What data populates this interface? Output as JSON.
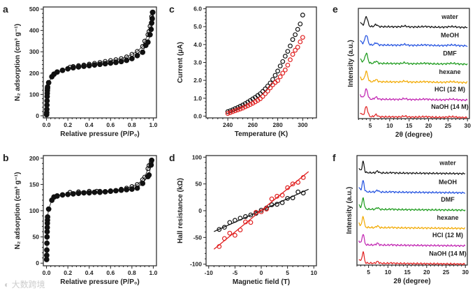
{
  "watermark": "大数跨境",
  "chart_data": [
    {
      "panel": "a",
      "type": "scatter",
      "xlabel": "Relative pressure (P/P₀)",
      "ylabel": "N₂ adsorption (cm³ g⁻¹)",
      "xlim": [
        -0.03,
        1.03
      ],
      "ylim": [
        -10,
        510
      ],
      "xticks": [
        0.0,
        0.2,
        0.4,
        0.6,
        0.8,
        1.0
      ],
      "xtick_labels": [
        "0.0",
        "0.2",
        "0.4",
        "0.6",
        "0.8",
        "1.0"
      ],
      "yticks": [
        0,
        100,
        200,
        300,
        400,
        500
      ],
      "ytick_labels": [
        "0",
        "100",
        "200",
        "300",
        "400",
        "500"
      ],
      "series": [
        {
          "name": "adsorption",
          "marker": "filled",
          "color": "#111111",
          "x": [
            0.001,
            0.002,
            0.003,
            0.004,
            0.005,
            0.006,
            0.007,
            0.008,
            0.009,
            0.01,
            0.02,
            0.05,
            0.07,
            0.1,
            0.15,
            0.2,
            0.25,
            0.3,
            0.35,
            0.4,
            0.45,
            0.5,
            0.55,
            0.6,
            0.65,
            0.7,
            0.75,
            0.8,
            0.85,
            0.9,
            0.93,
            0.95,
            0.97,
            0.98,
            0.985,
            0.99,
            0.995
          ],
          "y": [
            5,
            15,
            30,
            50,
            70,
            90,
            105,
            118,
            128,
            135,
            155,
            183,
            195,
            205,
            213,
            220,
            225,
            229,
            232,
            235,
            238,
            241,
            244,
            247,
            250,
            254,
            260,
            268,
            282,
            298,
            330,
            345,
            380,
            405,
            435,
            455,
            485
          ]
        },
        {
          "name": "desorption",
          "marker": "open",
          "color": "#111111",
          "x": [
            0.22,
            0.25,
            0.3,
            0.35,
            0.4,
            0.45,
            0.5,
            0.55,
            0.6,
            0.65,
            0.7,
            0.75,
            0.8,
            0.85,
            0.9,
            0.92,
            0.95,
            0.96,
            0.97,
            0.985,
            0.99
          ],
          "y": [
            228,
            231,
            235,
            238,
            242,
            246,
            250,
            255,
            259,
            263,
            268,
            276,
            288,
            302,
            325,
            350,
            380,
            395,
            420,
            465,
            485
          ]
        }
      ]
    },
    {
      "panel": "b",
      "type": "scatter",
      "xlabel": "Relative pressure (P/P₀)",
      "ylabel": "N₂ adsorption (cm³ g⁻¹)",
      "xlim": [
        -0.03,
        1.03
      ],
      "ylim": [
        -5,
        205
      ],
      "xticks": [
        0.0,
        0.2,
        0.4,
        0.6,
        0.8,
        1.0
      ],
      "xtick_labels": [
        "0.0",
        "0.2",
        "0.4",
        "0.6",
        "0.8",
        "1.0"
      ],
      "yticks": [
        0,
        50,
        100,
        150,
        200
      ],
      "ytick_labels": [
        "0",
        "50",
        "100",
        "150",
        "200"
      ],
      "series": [
        {
          "name": "adsorption",
          "marker": "filled",
          "color": "#111111",
          "x": [
            0.001,
            0.002,
            0.003,
            0.004,
            0.005,
            0.006,
            0.007,
            0.008,
            0.009,
            0.01,
            0.02,
            0.05,
            0.07,
            0.1,
            0.15,
            0.2,
            0.25,
            0.3,
            0.35,
            0.4,
            0.45,
            0.5,
            0.55,
            0.6,
            0.65,
            0.7,
            0.75,
            0.8,
            0.85,
            0.9,
            0.95,
            0.96,
            0.98,
            0.985
          ],
          "y": [
            7,
            15,
            25,
            38,
            50,
            60,
            68,
            76,
            82,
            88,
            103,
            120,
            126,
            128,
            130,
            131,
            132,
            133,
            134,
            134,
            135,
            135,
            136,
            137,
            138,
            139,
            140,
            141,
            143,
            152,
            165,
            168,
            187,
            196
          ]
        },
        {
          "name": "desorption",
          "marker": "open",
          "color": "#111111",
          "x": [
            0.22,
            0.3,
            0.4,
            0.47,
            0.5,
            0.6,
            0.7,
            0.75,
            0.8,
            0.85,
            0.9,
            0.92,
            0.95,
            0.96,
            0.98
          ],
          "y": [
            135,
            136,
            137,
            137,
            137,
            138,
            141,
            143,
            146,
            150,
            159,
            164,
            180,
            186,
            192
          ]
        }
      ]
    },
    {
      "panel": "c",
      "type": "scatter",
      "xlabel": "Temperature (K)",
      "ylabel": "Current (μA)",
      "xlim": [
        222.6,
        311
      ],
      "ylim": [
        -0.1,
        6.1
      ],
      "xticks": [
        240,
        260,
        280,
        300
      ],
      "xtick_labels": [
        "240",
        "260",
        "280",
        "300"
      ],
      "yticks": [
        0,
        1,
        2,
        3,
        4,
        5,
        6
      ],
      "ytick_labels": [
        "0.0",
        "1.0",
        "2.0",
        "3.0",
        "4.0",
        "5.0",
        "6.0"
      ],
      "series": [
        {
          "name": "black",
          "marker": "open",
          "color": "#111111",
          "x": [
            240,
            242,
            244,
            246,
            248,
            250,
            252,
            254,
            256,
            258,
            260,
            262,
            264,
            266,
            268,
            270,
            272,
            274,
            276,
            278,
            280,
            282,
            284,
            286,
            288,
            290,
            292,
            294,
            296,
            298,
            300
          ],
          "y": [
            0.25,
            0.3,
            0.35,
            0.42,
            0.48,
            0.55,
            0.62,
            0.7,
            0.78,
            0.87,
            0.96,
            1.05,
            1.15,
            1.25,
            1.38,
            1.52,
            1.68,
            1.85,
            2.05,
            2.28,
            2.52,
            2.8,
            3.05,
            3.35,
            3.62,
            3.92,
            4.28,
            4.55,
            4.85,
            5.15,
            5.65
          ]
        },
        {
          "name": "red",
          "marker": "open",
          "color": "#e02020",
          "x": [
            240,
            242,
            244,
            246,
            248,
            250,
            252,
            254,
            256,
            258,
            260,
            262,
            264,
            266,
            268,
            270,
            272,
            274,
            276,
            278,
            280,
            282,
            284,
            286,
            288,
            290,
            292,
            294,
            296,
            298,
            300
          ],
          "y": [
            0.15,
            0.2,
            0.25,
            0.3,
            0.35,
            0.4,
            0.45,
            0.52,
            0.58,
            0.65,
            0.72,
            0.8,
            0.88,
            0.97,
            1.1,
            1.25,
            1.4,
            1.58,
            1.75,
            1.88,
            1.98,
            2.2,
            2.4,
            2.58,
            2.85,
            3.15,
            3.45,
            3.68,
            3.85,
            4.15,
            4.4
          ]
        }
      ]
    },
    {
      "panel": "d",
      "type": "scatter",
      "xlabel": "Magnetic field (T)",
      "ylabel": "Hall resistance (kΩ)",
      "xlim": [
        -10.5,
        10.5
      ],
      "ylim": [
        -103,
        103
      ],
      "xticks": [
        -10,
        -5,
        0,
        5,
        10
      ],
      "xtick_labels": [
        "-10",
        "-5",
        "0",
        "5",
        "10"
      ],
      "yticks": [
        -100,
        -50,
        0,
        50,
        100
      ],
      "ytick_labels": [
        "-100",
        "-50",
        "0",
        "50",
        "100"
      ],
      "series": [
        {
          "name": "black",
          "marker": "open",
          "color": "#111111",
          "x": [
            -8,
            -7,
            -6,
            -5,
            -4,
            -3,
            -2,
            -1,
            0,
            1,
            2,
            3,
            4,
            5,
            6,
            7,
            8
          ],
          "y": [
            -35,
            -31,
            -22,
            -18,
            -14,
            -11,
            -8,
            -5,
            1,
            5,
            11,
            12,
            15,
            23,
            24,
            35,
            33
          ],
          "fit": {
            "x": [
              -9,
              9
            ],
            "y": [
              -39,
              40
            ]
          }
        },
        {
          "name": "red",
          "marker": "open",
          "color": "#e02020",
          "x": [
            -8,
            -7,
            -6,
            -5,
            -4,
            -3,
            -2,
            -1,
            0,
            1,
            2,
            3,
            4,
            5,
            6,
            7,
            8
          ],
          "y": [
            -67,
            -52,
            -42,
            -46,
            -36,
            -21,
            -22,
            -3,
            -2,
            3,
            22,
            27,
            29,
            43,
            50,
            53,
            62
          ],
          "fit": {
            "x": [
              -9,
              9
            ],
            "y": [
              -72,
              73
            ]
          }
        }
      ]
    },
    {
      "panel": "e",
      "type": "line",
      "xlabel": "2θ (degree)",
      "ylabel": "Intensity (a.u.)",
      "xlim": [
        1.95,
        30.5
      ],
      "ylim": [
        0,
        6.3
      ],
      "xticks": [
        5,
        10,
        15,
        20,
        25,
        30
      ],
      "xtick_labels": [
        "5",
        "10",
        "15",
        "20",
        "25",
        "30"
      ],
      "peaks": [
        [
          4.0,
          0.55,
          0.35
        ],
        [
          6.5,
          0.12,
          0.35
        ],
        [
          13.8,
          0.05,
          0.5
        ],
        [
          19.2,
          0.03,
          1.0
        ],
        [
          26.0,
          0.04,
          1.0
        ]
      ],
      "series": [
        {
          "name": "water",
          "color": "#111111",
          "offset": 5.25
        },
        {
          "name": "MeOH",
          "color": "#1f4fe0",
          "offset": 4.2
        },
        {
          "name": "DMF",
          "color": "#1a9a1a",
          "offset": 3.15
        },
        {
          "name": "hexane",
          "color": "#f2a900",
          "offset": 2.1
        },
        {
          "name": "HCl (12 M)",
          "color": "#c020b0",
          "offset": 1.1
        },
        {
          "name": "NaOH (14 M)",
          "color": "#e02020",
          "offset": 0.1
        }
      ]
    },
    {
      "panel": "f",
      "type": "line",
      "xlabel": "2θ (degree)",
      "ylabel": "Intensity (a.u.)",
      "xlim": [
        2.0,
        30.5
      ],
      "ylim": [
        0,
        6.3
      ],
      "xticks": [
        5,
        10,
        15,
        20,
        25,
        30
      ],
      "xtick_labels": [
        "5",
        "10",
        "15",
        "20",
        "25",
        "30"
      ],
      "peaks": [
        [
          3.6,
          0.6,
          0.25
        ],
        [
          7.3,
          0.1,
          0.3
        ],
        [
          11.0,
          0.02,
          0.5
        ]
      ],
      "series": [
        {
          "name": "water",
          "color": "#111111",
          "offset": 5.3
        },
        {
          "name": "MeOH",
          "color": "#1f4fe0",
          "offset": 4.2
        },
        {
          "name": "DMF",
          "color": "#1a9a1a",
          "offset": 3.2
        },
        {
          "name": "hexane",
          "color": "#f2a900",
          "offset": 2.15
        },
        {
          "name": "HCl (12 M)",
          "color": "#c020b0",
          "offset": 1.15
        },
        {
          "name": "NaOH (14 M)",
          "color": "#e02020",
          "offset": 0.1
        }
      ]
    }
  ]
}
